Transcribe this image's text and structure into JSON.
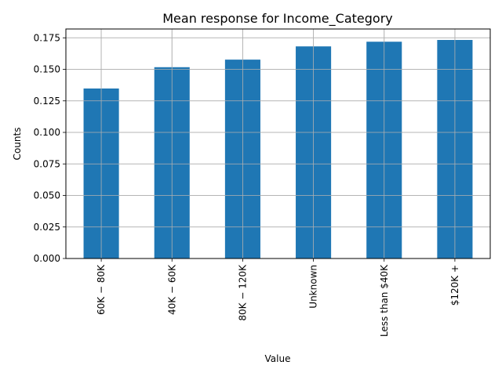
{
  "chart_data": {
    "type": "bar",
    "title": "Mean response for Income_Category",
    "xlabel": "Value",
    "ylabel": "Counts",
    "categories": [
      "$60K - $80K",
      "$40K - $60K",
      "$80K - $120K",
      "Unknown",
      "Less than $40K",
      "$120K +"
    ],
    "category_display": [
      "60K − 80K",
      "40K − 60K",
      "80K − 120K",
      "Unknown",
      "Less than $40K",
      "$120K +"
    ],
    "values": [
      0.1348,
      0.1517,
      0.1577,
      0.1682,
      0.1719,
      0.1733
    ],
    "ylim": [
      0,
      0.182
    ],
    "yticks": [
      0.0,
      0.025,
      0.05,
      0.075,
      0.1,
      0.125,
      0.15,
      0.175
    ],
    "ytick_labels": [
      "0.000",
      "0.025",
      "0.050",
      "0.075",
      "0.100",
      "0.125",
      "0.150",
      "0.175"
    ],
    "grid": true,
    "bar_color": "#1f77b4",
    "grid_color": "#b0b0b0"
  }
}
